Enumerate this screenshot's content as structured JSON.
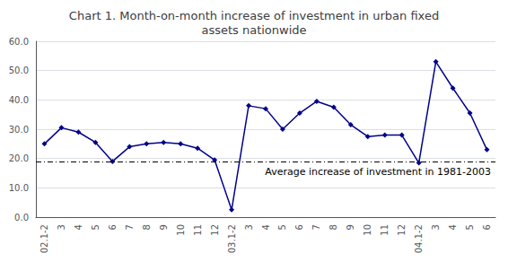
{
  "chart_data": {
    "type": "line",
    "title": "Chart 1. Month-on-month increase of investment in urban fixed\nassets nationwide",
    "categories": [
      "02.1-2",
      "3",
      "4",
      "5",
      "6",
      "7",
      "8",
      "9",
      "10",
      "11",
      "12",
      "03.1-2",
      "3",
      "4",
      "5",
      "6",
      "7",
      "8",
      "9",
      "10",
      "11",
      "12",
      "04.1-2",
      "3",
      "4",
      "5",
      "6"
    ],
    "values": [
      25.0,
      30.5,
      29.0,
      25.5,
      19.0,
      24.0,
      25.0,
      25.5,
      25.0,
      23.5,
      19.5,
      2.5,
      38.0,
      37.0,
      30.0,
      35.5,
      39.5,
      37.5,
      31.5,
      27.5,
      28.0,
      28.0,
      18.5,
      53.0,
      44.0,
      35.5,
      23.0
    ],
    "color": "#00008B",
    "marker": "diamond",
    "hlines": [
      {
        "value": 18.8,
        "label": "Average increase of investment in 1981-2003",
        "color": "#000000",
        "line_style": "dashdot"
      }
    ],
    "ylim": [
      0.0,
      60.0
    ],
    "yticks": [
      {
        "value": 0,
        "label": "0.0"
      },
      {
        "value": 10,
        "label": "10.0"
      },
      {
        "value": 20,
        "label": "20.0"
      },
      {
        "value": 30,
        "label": "30.0"
      },
      {
        "value": 40,
        "label": "40.0"
      },
      {
        "value": 50,
        "label": "50.0"
      },
      {
        "value": 60,
        "label": "60.0"
      }
    ],
    "grid": true
  }
}
